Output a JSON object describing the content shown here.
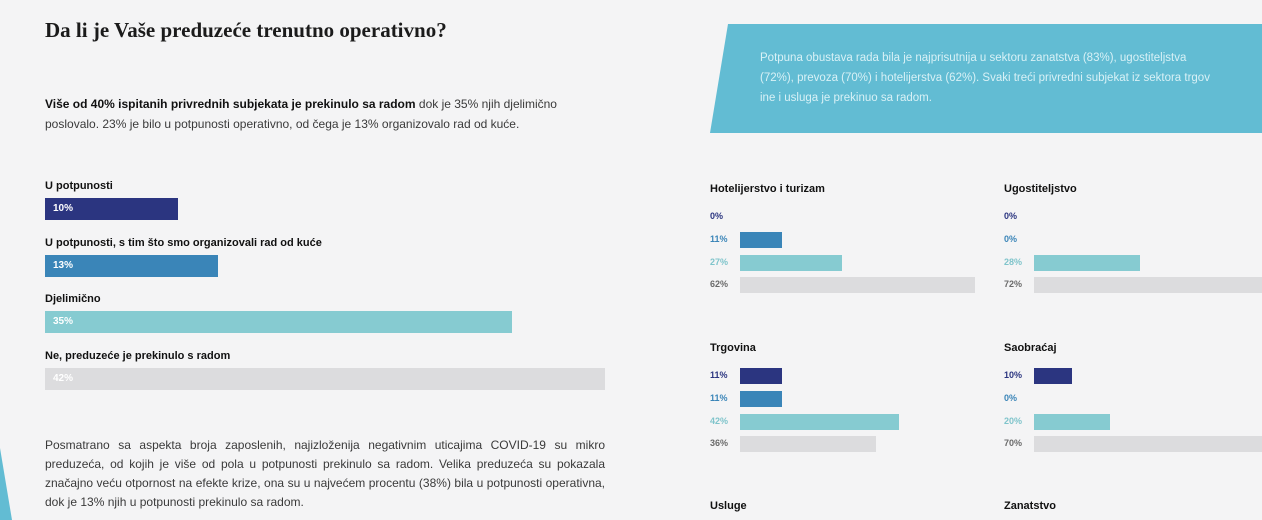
{
  "page": {
    "title": "Da li je Vaše preduzeće trenutno operativno?",
    "intro_bold": "Više od 40% ispitanih privrednih subjekata je prekinulo sa radom",
    "intro_rest": " dok je 35% njih djelimično poslovalo. 23% je bilo u potpunosti operativno, od čega je 13% organizovalo rad od kuće.",
    "bottom_text": "Posmatrano sa aspekta broja zaposlenih, najizloženija negativnim uticajima COVID-19 su mikro preduzeća, od kojih je više od pola u potpunosti prekinulo sa radom. Velika preduzeća su pokazala značajno veću otpornost na efekte krize, ona su u najvećem procentu (38%) bila u potpunosti operativna, dok je 13% njih u potpunosti prekinulo sa radom.",
    "banner_lines": [
      "Potpuna obustava rada bila je najprisutnija u sektoru zanatstva (83%), ugostiteljstva",
      "(72%), prevoza (70%) i hotelijerstva (62%). Svaki treći privredni subjekat iz sektora trgov",
      "ine i usluga je prekinuo sa radom."
    ]
  },
  "colors": {
    "navy": "#2b3580",
    "blue": "#3a85b8",
    "teal": "#86cbd1",
    "gray": "#dcdcde",
    "banner": "#62bcd3",
    "pct_navy": "#2b3580",
    "pct_blue": "#3a85b8",
    "pct_teal": "#7fc4cb",
    "pct_gray": "#6a6a6a"
  },
  "chart_data": [
    {
      "type": "bar",
      "categories": [
        "U potpunosti",
        "U potpunosti, s tim što smo organizovali rad od kuće",
        "Djelimično",
        "Ne, preduzeće je prekinulo s radom"
      ],
      "values": [
        10,
        13,
        35,
        42
      ],
      "labels": [
        "10%",
        "13%",
        "35%",
        "42%"
      ]
    },
    {
      "type": "bar",
      "title": "Hotelijerstvo i turizam",
      "values": [
        0,
        11,
        27,
        62
      ],
      "labels": [
        "0%",
        "11%",
        "27%",
        "62%"
      ]
    },
    {
      "type": "bar",
      "title": "Ugostiteljstvo",
      "values": [
        0,
        0,
        28,
        72
      ],
      "labels": [
        "0%",
        "0%",
        "28%",
        "72%"
      ]
    },
    {
      "type": "bar",
      "title": "Trgovina",
      "values": [
        11,
        11,
        42,
        36
      ],
      "labels": [
        "11%",
        "11%",
        "42%",
        "36%"
      ]
    },
    {
      "type": "bar",
      "title": "Saobraćaj",
      "values": [
        10,
        0,
        20,
        70
      ],
      "labels": [
        "10%",
        "0%",
        "20%",
        "70%"
      ]
    },
    {
      "type": "bar",
      "title": "Usluge",
      "values": [],
      "labels": []
    },
    {
      "type": "bar",
      "title": "Zanatstvo",
      "values": [],
      "labels": []
    }
  ]
}
